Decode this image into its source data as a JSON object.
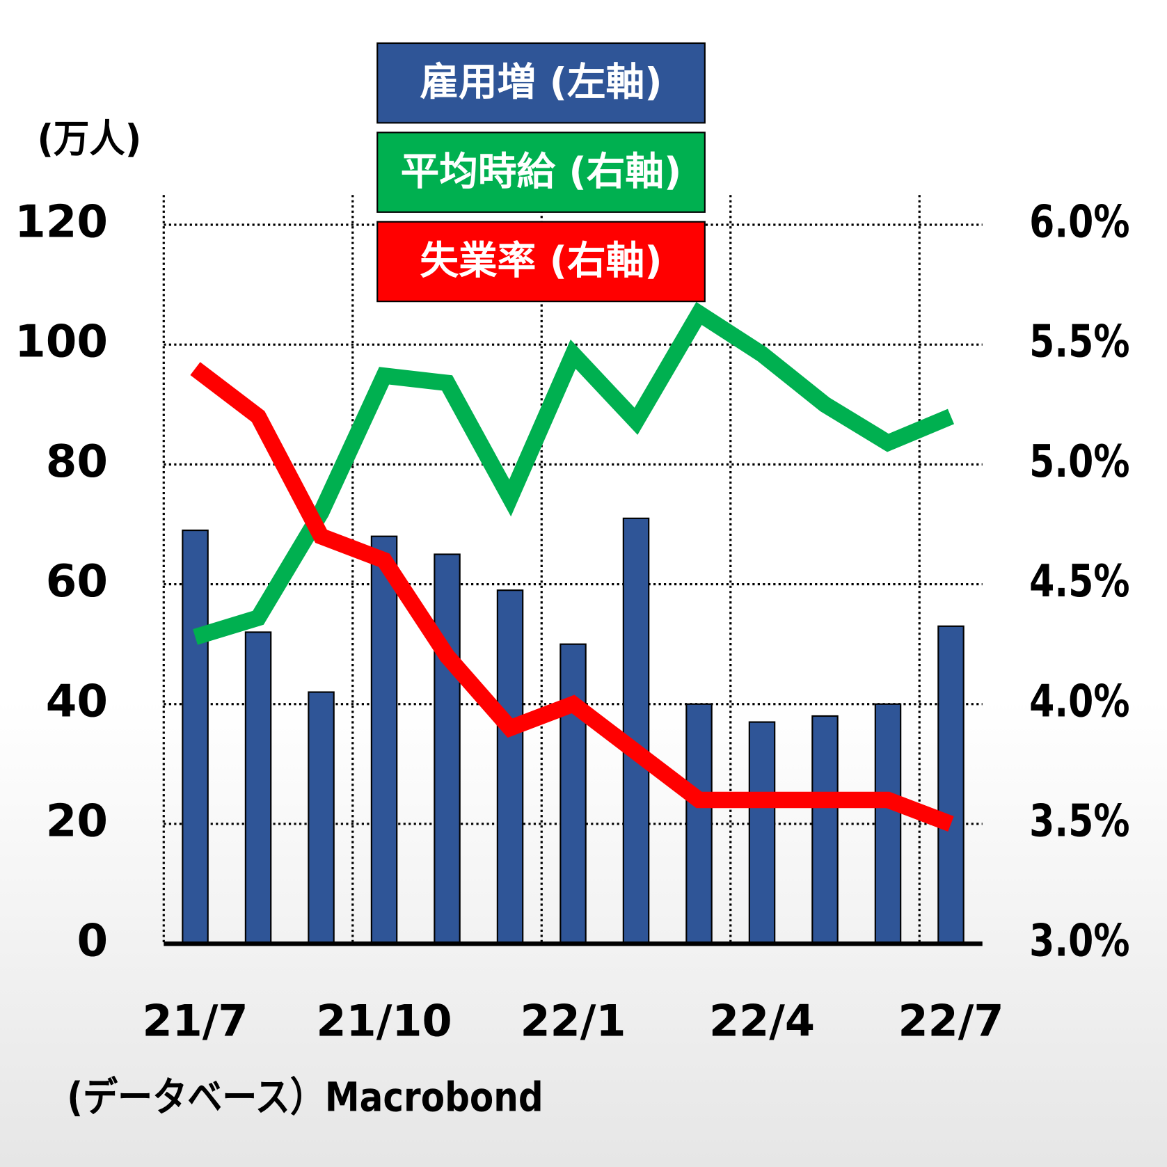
{
  "chart_data": {
    "type": "bar_line",
    "y_label": "(万人)",
    "source": "(データベース）Macrobond",
    "categories": [
      "21/7",
      null,
      null,
      "21/10",
      null,
      null,
      "22/1",
      null,
      null,
      "22/4",
      null,
      null,
      "22/7"
    ],
    "series": [
      {
        "name": "雇用増 (左軸)",
        "color": "#2f5597",
        "type": "bar",
        "values": [
          69,
          52,
          42,
          68,
          65,
          59,
          50,
          71,
          40,
          37,
          38,
          40,
          53
        ]
      },
      {
        "name": "平均時給 (右軸)",
        "color": "#00b050",
        "type": "line",
        "axis": "y2",
        "values": [
          4.28,
          4.36,
          4.8,
          5.37,
          5.34,
          4.86,
          5.46,
          5.18,
          5.63,
          5.46,
          5.25,
          5.09,
          5.2
        ]
      },
      {
        "name": "失業率 (右軸)",
        "color": "#ff0000",
        "type": "line",
        "axis": "y2",
        "values": [
          5.4,
          5.2,
          4.7,
          4.6,
          4.2,
          3.9,
          4.0,
          3.8,
          3.6,
          3.6,
          3.6,
          3.6,
          3.5
        ]
      }
    ],
    "ylim": [
      0,
      120
    ],
    "yticks": [
      0,
      20,
      40,
      60,
      80,
      100,
      120
    ],
    "y2lim": [
      3.0,
      6.0
    ],
    "y2ticks": [
      {
        "value": 3.0,
        "label": "3.0%"
      },
      {
        "value": 3.5,
        "label": "3.5%"
      },
      {
        "value": 4.0,
        "label": "4.0%"
      },
      {
        "value": 4.5,
        "label": "4.5%"
      },
      {
        "value": 5.0,
        "label": "5.0%"
      },
      {
        "value": 5.5,
        "label": "5.5%"
      },
      {
        "value": 6.0,
        "label": "6.0%"
      }
    ],
    "grid": true
  }
}
